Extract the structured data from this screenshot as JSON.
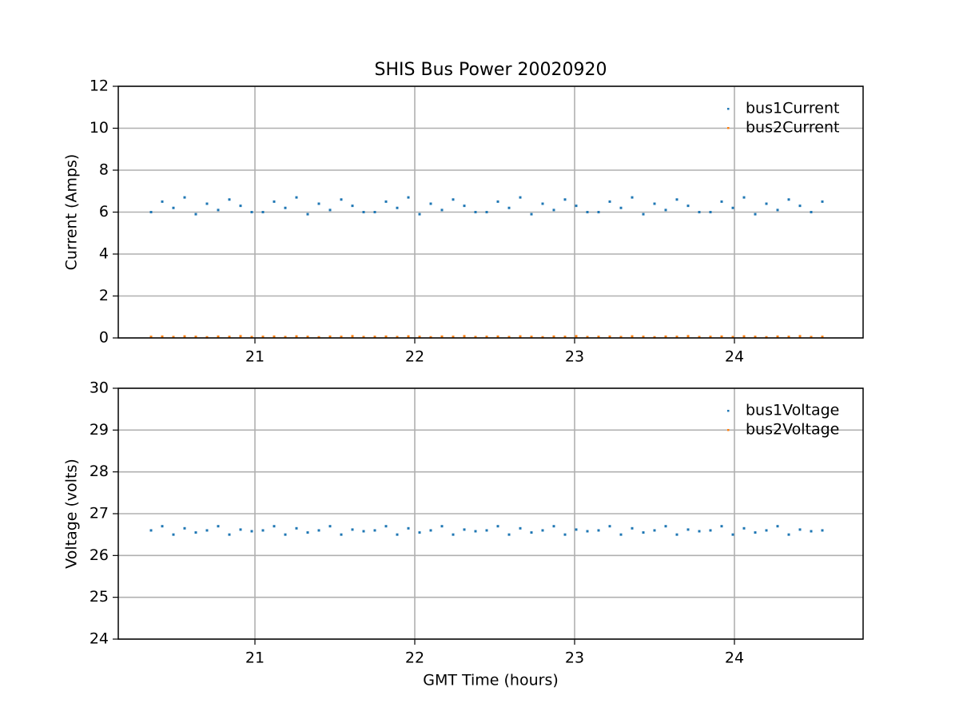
{
  "chart_data": [
    {
      "type": "scatter",
      "title": "SHIS Bus Power 20020920",
      "ylabel": "Current (Amps)",
      "x": [
        20.35,
        20.42,
        20.49,
        20.56,
        20.63,
        20.7,
        20.77,
        20.84,
        20.91,
        20.98,
        21.05,
        21.12,
        21.19,
        21.26,
        21.33,
        21.4,
        21.47,
        21.54,
        21.61,
        21.68,
        21.75,
        21.82,
        21.89,
        21.96,
        22.03,
        22.1,
        22.17,
        22.24,
        22.31,
        22.38,
        22.45,
        22.52,
        22.59,
        22.66,
        22.73,
        22.8,
        22.87,
        22.94,
        23.01,
        23.08,
        23.15,
        23.22,
        23.29,
        23.36,
        23.43,
        23.5,
        23.57,
        23.64,
        23.71,
        23.78,
        23.85,
        23.92,
        23.99,
        24.06,
        24.13,
        24.2,
        24.27,
        24.34,
        24.41,
        24.48,
        24.55
      ],
      "series": [
        {
          "name": "bus1Current",
          "color": "#1f77b4",
          "values": [
            6.0,
            6.5,
            6.2,
            6.7,
            5.9,
            6.4,
            6.1,
            6.6,
            6.3,
            6.0,
            6.0,
            6.5,
            6.2,
            6.7,
            5.9,
            6.4,
            6.1,
            6.6,
            6.3,
            6.0,
            6.0,
            6.5,
            6.2,
            6.7,
            5.9,
            6.4,
            6.1,
            6.6,
            6.3,
            6.0,
            6.0,
            6.5,
            6.2,
            6.7,
            5.9,
            6.4,
            6.1,
            6.6,
            6.3,
            6.0,
            6.0,
            6.5,
            6.2,
            6.7,
            5.9,
            6.4,
            6.1,
            6.6,
            6.3,
            6.0,
            6.0,
            6.5,
            6.2,
            6.7,
            5.9,
            6.4,
            6.1,
            6.6,
            6.3,
            6.0,
            6.5
          ]
        },
        {
          "name": "bus2Current",
          "color": "#ff7f0e",
          "values": [
            0.05,
            0.06,
            0.04,
            0.07,
            0.05,
            0.03,
            0.06,
            0.05,
            0.08,
            0.04,
            0.05,
            0.06,
            0.04,
            0.07,
            0.05,
            0.03,
            0.06,
            0.05,
            0.08,
            0.04,
            0.05,
            0.06,
            0.04,
            0.07,
            0.05,
            0.03,
            0.06,
            0.05,
            0.08,
            0.04,
            0.05,
            0.06,
            0.04,
            0.07,
            0.05,
            0.03,
            0.06,
            0.05,
            0.08,
            0.04,
            0.05,
            0.06,
            0.04,
            0.07,
            0.05,
            0.03,
            0.06,
            0.05,
            0.08,
            0.04,
            0.05,
            0.06,
            0.04,
            0.07,
            0.05,
            0.03,
            0.06,
            0.05,
            0.08,
            0.04,
            0.05
          ]
        }
      ],
      "xlim": [
        20.145,
        24.805
      ],
      "xticks": [
        21,
        22,
        23,
        24
      ],
      "ylim": [
        0,
        12
      ],
      "yticks": [
        0,
        2,
        4,
        6,
        8,
        10,
        12
      ],
      "grid": true,
      "legend": "upper right"
    },
    {
      "type": "scatter",
      "xlabel": "GMT Time (hours)",
      "ylabel": "Voltage (volts)",
      "x": [
        20.35,
        20.42,
        20.49,
        20.56,
        20.63,
        20.7,
        20.77,
        20.84,
        20.91,
        20.98,
        21.05,
        21.12,
        21.19,
        21.26,
        21.33,
        21.4,
        21.47,
        21.54,
        21.61,
        21.68,
        21.75,
        21.82,
        21.89,
        21.96,
        22.03,
        22.1,
        22.17,
        22.24,
        22.31,
        22.38,
        22.45,
        22.52,
        22.59,
        22.66,
        22.73,
        22.8,
        22.87,
        22.94,
        23.01,
        23.08,
        23.15,
        23.22,
        23.29,
        23.36,
        23.43,
        23.5,
        23.57,
        23.64,
        23.71,
        23.78,
        23.85,
        23.92,
        23.99,
        24.06,
        24.13,
        24.2,
        24.27,
        24.34,
        24.41,
        24.48,
        24.55
      ],
      "series": [
        {
          "name": "bus1Voltage",
          "color": "#1f77b4",
          "values": [
            26.6,
            26.7,
            26.5,
            26.65,
            26.55,
            26.6,
            26.7,
            26.5,
            26.62,
            26.58,
            26.6,
            26.7,
            26.5,
            26.65,
            26.55,
            26.6,
            26.7,
            26.5,
            26.62,
            26.58,
            26.6,
            26.7,
            26.5,
            26.65,
            26.55,
            26.6,
            26.7,
            26.5,
            26.62,
            26.58,
            26.6,
            26.7,
            26.5,
            26.65,
            26.55,
            26.6,
            26.7,
            26.5,
            26.62,
            26.58,
            26.6,
            26.7,
            26.5,
            26.65,
            26.55,
            26.6,
            26.7,
            26.5,
            26.62,
            26.58,
            26.6,
            26.7,
            26.5,
            26.65,
            26.55,
            26.6,
            26.7,
            26.5,
            26.62,
            26.58,
            26.6
          ]
        },
        {
          "name": "bus2Voltage",
          "color": "#ff7f0e",
          "values": [
            null,
            null,
            null,
            null,
            null,
            null,
            null,
            null,
            null,
            null,
            null,
            null,
            null,
            null,
            null,
            null,
            null,
            null,
            null,
            null,
            null,
            null,
            null,
            null,
            null,
            null,
            null,
            null,
            null,
            null,
            null,
            null,
            null,
            null,
            null,
            null,
            null,
            null,
            null,
            null,
            null,
            null,
            null,
            null,
            null,
            null,
            null,
            null,
            null,
            null,
            null,
            null,
            null,
            null,
            null,
            null,
            null,
            null,
            null,
            null,
            null
          ]
        }
      ],
      "xlim": [
        20.145,
        24.805
      ],
      "xticks": [
        21,
        22,
        23,
        24
      ],
      "ylim": [
        24,
        30
      ],
      "yticks": [
        24,
        25,
        26,
        27,
        28,
        29,
        30
      ],
      "grid": true,
      "legend": "upper right"
    }
  ]
}
